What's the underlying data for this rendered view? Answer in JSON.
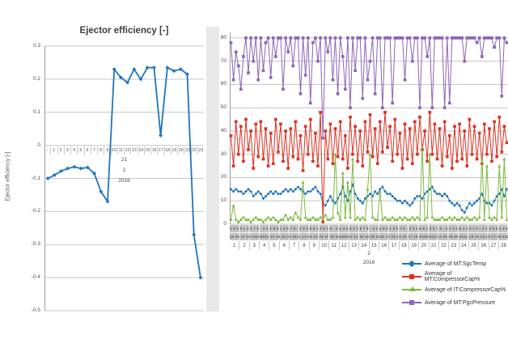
{
  "chart_data": [
    {
      "type": "line",
      "title": "Ejector efficiency [-]",
      "ylabel": "Ejector efficiency [-]",
      "xlabel": "",
      "ylim": [
        -0.5,
        0.3
      ],
      "grid": true,
      "ytick_labels": [
        "0.3",
        "0.2",
        "0.1",
        "0",
        "-0.1",
        "-0.2",
        "-0.3",
        "-0.4",
        "-0.5"
      ],
      "categories": [
        "-",
        "1",
        "2",
        "3",
        "4",
        "5",
        "6",
        "7",
        "8",
        "9",
        "10",
        "11",
        "12",
        "13",
        "14",
        "15",
        "16",
        "17",
        "18",
        "19",
        "20",
        "21",
        "22",
        "23"
      ],
      "group_labels": [
        "21",
        "2",
        "2016"
      ],
      "series_color": "#1f74be",
      "values": [
        -0.1,
        -0.09,
        -0.078,
        -0.07,
        -0.065,
        -0.07,
        -0.067,
        -0.085,
        -0.14,
        -0.17,
        0.23,
        0.205,
        0.19,
        0.23,
        0.2,
        0.235,
        0.235,
        0.03,
        0.235,
        0.225,
        0.23,
        0.215,
        -0.27,
        -0.4
      ]
    },
    {
      "type": "line",
      "title": "",
      "ylim": [
        0,
        82.4
      ],
      "grid": true,
      "legend_position": "bottom-right",
      "ytick_labels": [
        "80",
        "70",
        "60",
        "50",
        "40",
        "30",
        "20",
        "10",
        "0"
      ],
      "x_day_labels": [
        "1",
        "2",
        "3",
        "4",
        "5",
        "6",
        "7",
        "8",
        "9",
        "10",
        "11",
        "12",
        "13",
        "14",
        "15",
        "16",
        "17",
        "18",
        "19",
        "20",
        "21",
        "22",
        "23",
        "24",
        "25",
        "26",
        "27",
        "28"
      ],
      "x_month_label": "2",
      "x_year_label": "2016",
      "hour_row1": "2  4  6  8      1  3  5  7  9      -  2    ",
      "hour_row2": "13 15 17 19 21102312 14 16 18 20 2211 13 15  ",
      "series": [
        {
          "name": "Average of MT:SgcTemp",
          "color": "#1f74be",
          "marker": "diamond",
          "values": [
            15,
            14,
            15,
            14,
            14,
            13,
            14,
            15,
            14,
            12,
            13,
            14,
            13,
            11,
            12,
            13,
            14,
            13,
            14,
            13,
            13,
            14,
            15,
            14,
            15,
            14,
            15,
            16,
            15,
            14,
            13,
            14,
            14,
            15,
            16,
            14,
            13,
            9,
            8,
            10,
            12,
            10,
            9,
            11,
            13,
            16,
            12,
            10,
            14,
            17,
            13,
            11,
            10,
            9,
            11,
            12,
            13,
            12,
            14,
            13,
            15,
            16,
            14,
            13,
            13,
            12,
            11,
            10,
            10,
            9,
            10,
            9,
            8,
            9,
            11,
            12,
            12,
            11,
            13,
            14,
            15,
            16,
            14,
            13,
            13,
            12,
            13,
            12,
            10,
            9,
            8,
            9,
            8,
            6,
            5,
            7,
            9,
            8,
            9,
            10,
            11,
            13,
            10,
            9,
            9,
            8,
            10,
            12,
            13,
            15,
            12,
            15
          ]
        },
        {
          "name": "Average of MT:CompressorCap%",
          "color": "#dd3222",
          "marker": "square",
          "values": [
            38,
            25,
            44,
            30,
            42,
            27,
            45,
            32,
            40,
            24,
            43,
            29,
            44,
            28,
            41,
            25,
            39,
            26,
            45,
            31,
            43,
            27,
            40,
            24,
            41,
            29,
            44,
            28,
            38,
            23,
            42,
            30,
            45,
            27,
            39,
            25,
            48,
            1,
            40,
            28,
            43,
            26,
            41,
            29,
            44,
            28,
            38,
            24,
            46,
            30,
            42,
            27,
            40,
            25,
            44,
            31,
            47,
            29,
            41,
            26,
            44,
            31,
            48,
            33,
            42,
            27,
            45,
            30,
            39,
            24,
            43,
            28,
            41,
            26,
            44,
            30,
            46,
            32,
            40,
            27,
            48,
            30,
            43,
            28,
            41,
            25,
            44,
            29,
            38,
            24,
            42,
            27,
            43,
            28,
            40,
            25,
            45,
            30,
            42,
            28,
            39,
            26,
            43,
            30,
            41,
            27,
            44,
            29,
            46,
            31,
            42,
            35
          ]
        },
        {
          "name": "Average of IT:CompressorCap%",
          "color": "#7cbb3c",
          "marker": "triangle",
          "values": [
            2,
            8,
            2,
            1,
            2,
            3,
            2,
            2,
            1,
            2,
            3,
            2,
            2,
            1,
            2,
            3,
            2,
            3,
            2,
            1,
            2,
            2,
            4,
            2,
            3,
            2,
            5,
            3,
            2,
            18,
            3,
            2,
            2,
            3,
            2,
            2,
            3,
            2,
            4,
            2,
            2,
            3,
            30,
            5,
            2,
            22,
            3,
            18,
            3,
            28,
            2,
            3,
            2,
            3,
            2,
            15,
            30,
            3,
            2,
            2,
            14,
            2,
            3,
            2,
            2,
            3,
            2,
            2,
            3,
            2,
            3,
            2,
            2,
            3,
            2,
            3,
            2,
            33,
            2,
            3,
            30,
            3,
            2,
            2,
            2,
            3,
            2,
            2,
            3,
            2,
            3,
            2,
            2,
            3,
            2,
            3,
            2,
            2,
            3,
            2,
            3,
            28,
            2,
            25,
            3,
            2,
            3,
            2,
            25,
            3,
            28,
            2
          ]
        },
        {
          "name": "Average of MT:PgcPressure",
          "color": "#8c66b8",
          "marker": "square",
          "values": [
            78,
            62,
            74,
            68,
            58,
            72,
            80,
            65,
            80,
            70,
            80,
            62,
            80,
            66,
            78,
            80,
            63,
            80,
            72,
            80,
            80,
            58,
            80,
            74,
            80,
            68,
            80,
            80,
            56,
            80,
            64,
            80,
            52,
            78,
            80,
            70,
            80,
            37,
            80,
            74,
            80,
            62,
            80,
            56,
            80,
            72,
            58,
            80,
            50,
            80,
            66,
            80,
            80,
            54,
            80,
            62,
            70,
            80,
            56,
            80,
            80,
            50,
            80,
            80,
            80,
            52,
            80,
            80,
            80,
            80,
            62,
            80,
            80,
            70,
            80,
            80,
            50,
            80,
            80,
            72,
            80,
            50,
            80,
            80,
            80,
            80,
            50,
            80,
            52,
            80,
            80,
            80,
            80,
            80,
            70,
            80,
            80,
            80,
            80,
            78,
            80,
            72,
            80,
            80,
            80,
            80,
            76,
            80,
            80,
            55,
            80,
            78
          ]
        }
      ]
    }
  ],
  "legend_prefix_note": "legend labels are series names above"
}
